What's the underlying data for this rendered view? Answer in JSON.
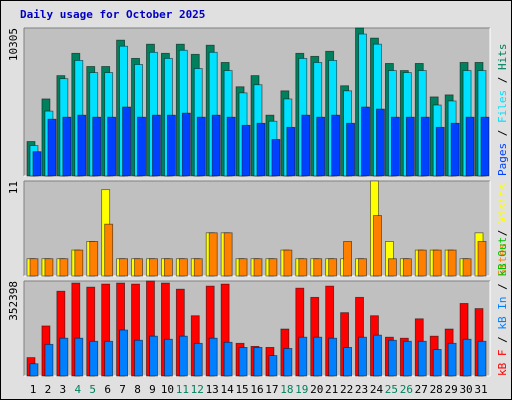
{
  "chart_data": [
    {
      "type": "bar",
      "title": "Daily usage for October 2025",
      "ylim": [
        0,
        10305
      ],
      "yticks": [
        10305
      ],
      "legend_separator": " / ",
      "draw_order": "reverse",
      "series": [
        {
          "name": "Pages",
          "color": "#0040ff",
          "values": [
            1694,
            3954,
            4095,
            4236,
            4095,
            4095,
            4801,
            4095,
            4236,
            4236,
            4377,
            4095,
            4236,
            4095,
            3530,
            3671,
            2542,
            3389,
            4236,
            4095,
            4236,
            3671,
            4801,
            4660,
            4095,
            4095,
            4095,
            3389,
            3671,
            4095,
            4095
          ]
        },
        {
          "name": "Files",
          "color": "#00e0ff",
          "values": [
            2118,
            4518,
            6778,
            8048,
            7201,
            7201,
            9037,
            7766,
            8613,
            8190,
            8754,
            7484,
            8613,
            7342,
            5789,
            6354,
            3812,
            5366,
            8190,
            7907,
            8048,
            5930,
            9884,
            9178,
            7342,
            7201,
            7342,
            4942,
            5224,
            7342,
            7342
          ]
        },
        {
          "name": "Hits",
          "color": "#00805c",
          "values": [
            2400,
            5366,
            6989,
            8543,
            7625,
            7625,
            9460,
            8190,
            9178,
            8543,
            9178,
            8472,
            9107,
            7907,
            6213,
            6989,
            4236,
            5930,
            8543,
            8331,
            8684,
            6283,
            10305,
            9602,
            7837,
            7342,
            7837,
            5507,
            5648,
            7907,
            7907
          ]
        }
      ]
    },
    {
      "type": "bar",
      "ylim": [
        0,
        11
      ],
      "yticks": [
        11
      ],
      "legend_separator": " / ",
      "draw_order": "reverse",
      "series": [
        {
          "name": "Sites",
          "color": "#ff8000",
          "values": [
            2,
            2,
            2,
            3,
            4,
            6,
            2,
            2,
            2,
            2,
            2,
            2,
            5,
            5,
            2,
            2,
            2,
            3,
            2,
            2,
            2,
            4,
            2,
            7,
            2,
            2,
            3,
            3,
            3,
            2,
            4
          ]
        },
        {
          "name": "Visits",
          "color": "#ffff00",
          "values": [
            2,
            2,
            2,
            3,
            4,
            10,
            2,
            2,
            2,
            2,
            2,
            2,
            5,
            5,
            2,
            2,
            2,
            3,
            2,
            2,
            2,
            2,
            2,
            11,
            4,
            2,
            3,
            3,
            3,
            2,
            5
          ]
        }
      ]
    },
    {
      "type": "bar",
      "ylim": [
        0,
        352398
      ],
      "yticks": [
        352398
      ],
      "legend_separator": " / ",
      "draw_order": "forward",
      "categories": [
        1,
        2,
        3,
        4,
        5,
        6,
        7,
        8,
        9,
        10,
        11,
        12,
        13,
        14,
        15,
        16,
        17,
        18,
        19,
        20,
        21,
        22,
        23,
        24,
        25,
        26,
        27,
        28,
        29,
        30,
        31
      ],
      "category_colors": [
        "#000",
        "#000",
        "#000",
        "#00805c",
        "#00805c",
        "#000",
        "#000",
        "#000",
        "#000",
        "#000",
        "#00805c",
        "#00805c",
        "#000",
        "#000",
        "#000",
        "#000",
        "#000",
        "#00805c",
        "#00805c",
        "#000",
        "#000",
        "#000",
        "#000",
        "#000",
        "#00805c",
        "#00805c",
        "#000",
        "#000",
        "#000",
        "#000",
        "#000"
      ],
      "series": [
        {
          "name": "kB F",
          "color": "#ff0000",
          "values": [
            68202,
            185661,
            314487,
            344799,
            329643,
            341010,
            344799,
            341010,
            352398,
            344799,
            322065,
            223551,
            333432,
            341010,
            121248,
            109881,
            106092,
            174294,
            325854,
            291753,
            333432,
            234918,
            291753,
            223551,
            143982,
            140193,
            212184,
            147771,
            174294,
            269019,
            250074
          ]
        },
        {
          "name": "kB In",
          "color": "#0080ff",
          "values": [
            45468,
            117459,
            140193,
            140193,
            128826,
            128826,
            170505,
            132615,
            147771,
            136404,
            147771,
            121248,
            140193,
            125037,
            106092,
            106092,
            75780,
            102303,
            143982,
            143982,
            140193,
            106092,
            143982,
            151560,
            132615,
            128826,
            128826,
            98514,
            121248,
            136404,
            128826
          ]
        },
        {
          "name": "kB Out",
          "color": "#00c000",
          "values": [
            0,
            0,
            0,
            0,
            0,
            0,
            0,
            0,
            0,
            0,
            0,
            0,
            0,
            0,
            0,
            0,
            0,
            0,
            0,
            0,
            0,
            0,
            0,
            0,
            0,
            0,
            0,
            0,
            0,
            0,
            0
          ]
        }
      ]
    }
  ]
}
